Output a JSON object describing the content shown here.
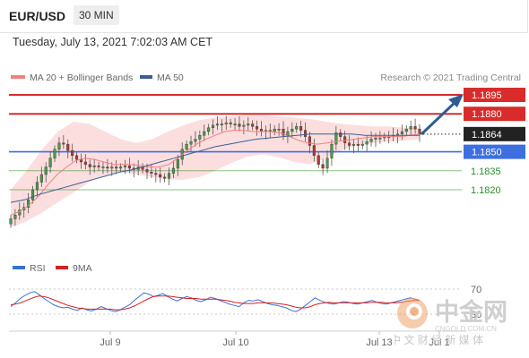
{
  "header": {
    "pair": "EUR/USD",
    "timeframe": "30 MIN",
    "timestamp": "Tuesday, July 13, 2021 7:02:03 AM CET"
  },
  "legend_main": {
    "item1": "MA 20 + Bollinger Bands",
    "item2": "MA 50",
    "credit": "Research © 2021 Trading Central",
    "colors": {
      "ma20": "#f08080",
      "ma50": "#3a5f96",
      "bb_fill": "#fbd3d3"
    }
  },
  "legend_rsi": {
    "item1": "RSI",
    "item2": "9MA",
    "colors": {
      "rsi": "#3c6fd6",
      "ma9": "#d62020"
    }
  },
  "watermark": {
    "name": "中金网",
    "url": "CNGOLD.COM.CN",
    "tagline": "中 文 财 经 新 媒 体"
  },
  "chart_data": [
    {
      "type": "candlestick",
      "title": "EUR/USD 30 MIN",
      "x_tick_labels": [
        "Jul 9",
        "Jul 10",
        "Jul 13",
        "Jul 1"
      ],
      "ylim": [
        1.1795,
        1.1905
      ],
      "levels": [
        {
          "value": 1.1895,
          "label": "1.1895",
          "kind": "resistance",
          "color": "#d92b2b"
        },
        {
          "value": 1.188,
          "label": "1.1880",
          "kind": "resistance",
          "color": "#d92b2b"
        },
        {
          "value": 1.1864,
          "label": "1.1864",
          "kind": "last_price",
          "color": "#222222"
        },
        {
          "value": 1.185,
          "label": "1.1850",
          "kind": "pivot",
          "color": "#3d6fe0"
        },
        {
          "value": 1.1835,
          "label": "1.1835",
          "kind": "support",
          "color": "#2e8b2e"
        },
        {
          "value": 1.182,
          "label": "1.1820",
          "kind": "support",
          "color": "#2e8b2e"
        }
      ],
      "close": [
        1.1797,
        1.18,
        1.1804,
        1.1806,
        1.1812,
        1.182,
        1.1826,
        1.1832,
        1.1838,
        1.1845,
        1.1852,
        1.1857,
        1.1856,
        1.1851,
        1.1847,
        1.1844,
        1.1842,
        1.184,
        1.1838,
        1.1839,
        1.1838,
        1.1838,
        1.1837,
        1.1838,
        1.1837,
        1.1838,
        1.1839,
        1.1837,
        1.1836,
        1.1838,
        1.1836,
        1.1834,
        1.1833,
        1.1832,
        1.183,
        1.1829,
        1.1833,
        1.1837,
        1.1844,
        1.1852,
        1.1856,
        1.1858,
        1.186,
        1.1863,
        1.1866,
        1.1869,
        1.1871,
        1.1872,
        1.1872,
        1.1873,
        1.1872,
        1.1872,
        1.187,
        1.1871,
        1.1872,
        1.187,
        1.1868,
        1.1866,
        1.1867,
        1.1866,
        1.1868,
        1.1868,
        1.1863,
        1.1866,
        1.1868,
        1.187,
        1.1867,
        1.1862,
        1.1855,
        1.1847,
        1.184,
        1.1837,
        1.1845,
        1.1856,
        1.1865,
        1.1862,
        1.1857,
        1.1855,
        1.1856,
        1.1855,
        1.1856,
        1.1858,
        1.186,
        1.1861,
        1.1861,
        1.1862,
        1.1862,
        1.1863,
        1.1864,
        1.1866,
        1.1868,
        1.187,
        1.1868,
        1.1864
      ],
      "ma20": [
        1.18,
        1.1803,
        1.1808,
        1.1815,
        1.1824,
        1.1832,
        1.1838,
        1.1843,
        1.1845,
        1.1844,
        1.1842,
        1.184,
        1.184,
        1.184,
        1.1839,
        1.1838,
        1.1838,
        1.184,
        1.1845,
        1.1851,
        1.1856,
        1.186,
        1.1863,
        1.1866,
        1.1867,
        1.1867,
        1.1866,
        1.1866,
        1.1866,
        1.1865,
        1.1862,
        1.1859,
        1.1857,
        1.1856,
        1.1857,
        1.1858,
        1.1859,
        1.186,
        1.1861,
        1.1862,
        1.1862,
        1.1862,
        1.1862,
        1.1863,
        1.1864
      ],
      "ma50": [
        1.181,
        1.1812,
        1.1816,
        1.1819,
        1.1822,
        1.1825,
        1.1828,
        1.1831,
        1.1834,
        1.1836,
        1.1839,
        1.1842,
        1.1845,
        1.1848,
        1.1851,
        1.1854,
        1.1856,
        1.1858,
        1.186,
        1.1861,
        1.1862,
        1.1863,
        1.1864,
        1.1864,
        1.1864,
        1.1864,
        1.1863,
        1.1863,
        1.1863,
        1.1863,
        1.1863
      ],
      "bb_upper": [
        1.182,
        1.1835,
        1.1852,
        1.1866,
        1.1874,
        1.1872,
        1.1866,
        1.186,
        1.1857,
        1.186,
        1.1866,
        1.1871,
        1.1875,
        1.1877,
        1.1878,
        1.1879,
        1.1879,
        1.1878,
        1.1877,
        1.1876,
        1.1874,
        1.1872,
        1.1871,
        1.187,
        1.187,
        1.1869,
        1.1869
      ],
      "bb_lower": [
        1.179,
        1.1795,
        1.1802,
        1.181,
        1.1818,
        1.1826,
        1.1831,
        1.1834,
        1.1832,
        1.183,
        1.1828,
        1.1828,
        1.183,
        1.1835,
        1.1841,
        1.1846,
        1.1848,
        1.1846,
        1.1842,
        1.184,
        1.1845,
        1.1851,
        1.1855,
        1.1857,
        1.1858,
        1.1859,
        1.186
      ]
    },
    {
      "type": "line",
      "title": "RSI",
      "ylim": [
        20,
        80
      ],
      "y_tick_labels": [
        "70",
        "30"
      ],
      "reference_levels": [
        70,
        30
      ],
      "series": [
        {
          "name": "RSI",
          "color": "#3c6fd6",
          "values": [
            42,
            48,
            55,
            60,
            64,
            66,
            61,
            55,
            50,
            45,
            42,
            40,
            41,
            38,
            36,
            40,
            37,
            35,
            38,
            42,
            39,
            36,
            34,
            37,
            41,
            45,
            52,
            58,
            64,
            62,
            58,
            60,
            63,
            58,
            54,
            51,
            55,
            58,
            56,
            52,
            50,
            53,
            57,
            55,
            52,
            49,
            46,
            44,
            42,
            48,
            52,
            51,
            53,
            50,
            47,
            45,
            44,
            42,
            40,
            36,
            34,
            38,
            44,
            50,
            56,
            52,
            49,
            47,
            46,
            48,
            50,
            49,
            47,
            46,
            48,
            50,
            52,
            49,
            47,
            46,
            48,
            50,
            52,
            54,
            56,
            54,
            52
          ]
        },
        {
          "name": "9MA",
          "color": "#d62020",
          "values": [
            45,
            46,
            48,
            51,
            54,
            57,
            59,
            58,
            56,
            53,
            50,
            47,
            44,
            42,
            40,
            39,
            38,
            38,
            38,
            38,
            38,
            38,
            37,
            37,
            38,
            40,
            43,
            47,
            51,
            55,
            58,
            59,
            59,
            59,
            58,
            57,
            56,
            55,
            55,
            55,
            54,
            54,
            54,
            54,
            53,
            52,
            51,
            49,
            48,
            47,
            47,
            47,
            48,
            48,
            48,
            48,
            47,
            46,
            45,
            43,
            41,
            40,
            40,
            42,
            45,
            47,
            48,
            49,
            48,
            48,
            48,
            48,
            48,
            48,
            48,
            48,
            49,
            49,
            49,
            48,
            48,
            48,
            49,
            50,
            51,
            52,
            52
          ]
        }
      ]
    }
  ]
}
